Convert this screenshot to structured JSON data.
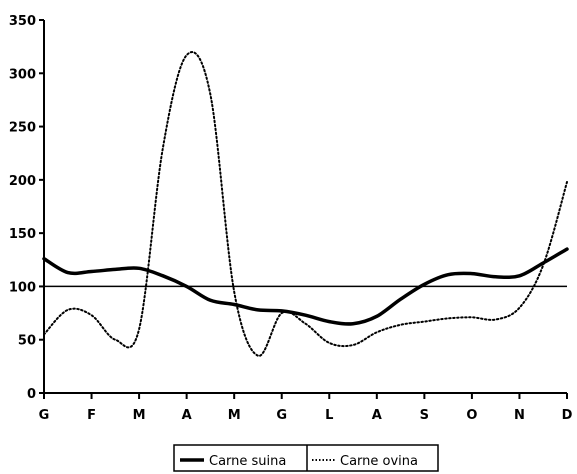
{
  "chart_data": {
    "type": "line",
    "title": "",
    "xlabel": "",
    "ylabel": "",
    "categories": [
      "G",
      "F",
      "M",
      "A",
      "M",
      "G",
      "L",
      "A",
      "S",
      "O",
      "N",
      "D"
    ],
    "ylim": [
      0,
      350
    ],
    "yticks": [
      0,
      50,
      100,
      150,
      200,
      250,
      300,
      350
    ],
    "grid": false,
    "legend_position": "bottom-center",
    "reference_line": 100,
    "series": [
      {
        "name": "Carne suina",
        "style": "solid",
        "color": "#000000",
        "values": [
          126,
          114,
          117,
          100,
          83,
          77,
          67,
          72,
          102,
          112,
          110,
          135
        ],
        "extra_points": [
          {
            "x": 0.5,
            "y": 113
          },
          {
            "x": 1.5,
            "y": 116
          },
          {
            "x": 2.5,
            "y": 110
          },
          {
            "x": 3.5,
            "y": 87
          },
          {
            "x": 4.5,
            "y": 78
          },
          {
            "x": 5.5,
            "y": 73
          },
          {
            "x": 6.5,
            "y": 65
          },
          {
            "x": 7.5,
            "y": 88
          },
          {
            "x": 8.5,
            "y": 111
          },
          {
            "x": 9.5,
            "y": 109
          },
          {
            "x": 10.5,
            "y": 122
          }
        ]
      },
      {
        "name": "Carne ovina",
        "style": "dotted",
        "color": "#000000",
        "values": [
          55,
          73,
          60,
          317,
          95,
          75,
          47,
          57,
          67,
          71,
          80,
          198
        ],
        "extra_points": [
          {
            "x": 0.5,
            "y": 78
          },
          {
            "x": 1.5,
            "y": 50
          },
          {
            "x": 2.5,
            "y": 230
          },
          {
            "x": 3.5,
            "y": 280
          },
          {
            "x": 4.5,
            "y": 35
          },
          {
            "x": 5.5,
            "y": 65
          },
          {
            "x": 6.5,
            "y": 45
          },
          {
            "x": 7.5,
            "y": 64
          },
          {
            "x": 8.5,
            "y": 70
          },
          {
            "x": 9.5,
            "y": 69
          },
          {
            "x": 10.5,
            "y": 120
          }
        ]
      }
    ]
  }
}
